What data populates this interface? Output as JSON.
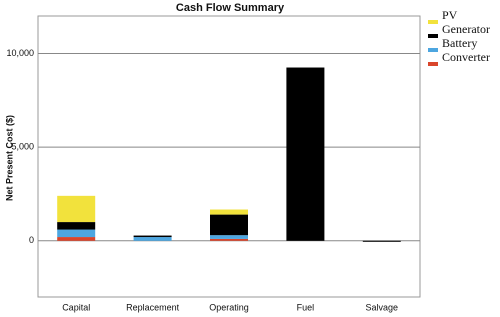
{
  "chart_data": {
    "type": "stacked-bar",
    "title": "Cash Flow Summary",
    "y_label": "Net Present Cost ($)",
    "categories": [
      "Capital",
      "Replacement",
      "Operating",
      "Fuel",
      "Salvage"
    ],
    "series": [
      {
        "name": "Converter",
        "color": "#d9452b",
        "values": [
          200,
          0,
          100,
          0,
          0
        ]
      },
      {
        "name": "Battery",
        "color": "#4da6e0",
        "values": [
          400,
          200,
          200,
          0,
          0
        ]
      },
      {
        "name": "Generator",
        "color": "#000000",
        "values": [
          400,
          80,
          1100,
          9250,
          -50
        ]
      },
      {
        "name": "PV",
        "color": "#f2e23c",
        "values": [
          1400,
          0,
          270,
          0,
          0
        ]
      }
    ],
    "ylim": [
      -3000,
      12000
    ],
    "yticks": [
      0,
      {
        "value": 5000,
        "label": "5,000"
      },
      {
        "value": 10000,
        "label": "10,000"
      }
    ],
    "grid": true,
    "legend": "top-right"
  }
}
